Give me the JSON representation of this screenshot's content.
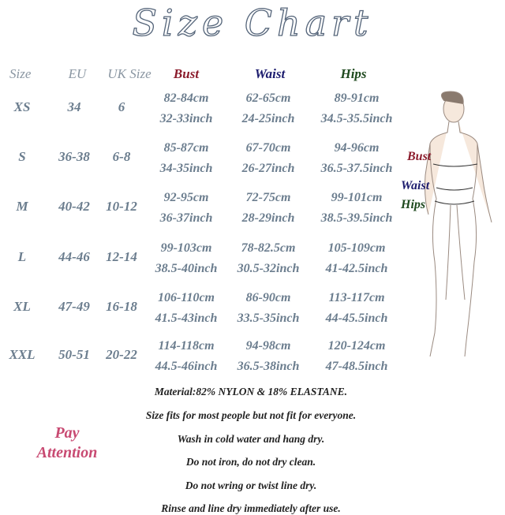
{
  "title": "Size Chart",
  "headers": {
    "size": "Size",
    "eu": "EU",
    "uk": "UK Size",
    "bust": "Bust",
    "waist": "Waist",
    "hips": "Hips"
  },
  "colors": {
    "text": "#6b7d8e",
    "bust": "#8b1c2c",
    "waist": "#1c1c6e",
    "hips": "#1f4a1f",
    "attention": "#c84a72"
  },
  "rows": [
    {
      "size": "XS",
      "eu": "34",
      "uk": "6",
      "bust_cm": "82-84cm",
      "bust_in": "32-33inch",
      "waist_cm": "62-65cm",
      "waist_in": "24-25inch",
      "hips_cm": "89-91cm",
      "hips_in": "34.5-35.5inch"
    },
    {
      "size": "S",
      "eu": "36-38",
      "uk": "6-8",
      "bust_cm": "85-87cm",
      "bust_in": "34-35inch",
      "waist_cm": "67-70cm",
      "waist_in": "26-27inch",
      "hips_cm": "94-96cm",
      "hips_in": "36.5-37.5inch"
    },
    {
      "size": "M",
      "eu": "40-42",
      "uk": "10-12",
      "bust_cm": "92-95cm",
      "bust_in": "36-37inch",
      "waist_cm": "72-75cm",
      "waist_in": "28-29inch",
      "hips_cm": "99-101cm",
      "hips_in": "38.5-39.5inch"
    },
    {
      "size": "L",
      "eu": "44-46",
      "uk": "12-14",
      "bust_cm": "99-103cm",
      "bust_in": "38.5-40inch",
      "waist_cm": "78-82.5cm",
      "waist_in": "30.5-32inch",
      "hips_cm": "105-109cm",
      "hips_in": "41-42.5inch"
    },
    {
      "size": "XL",
      "eu": "47-49",
      "uk": "16-18",
      "bust_cm": "106-110cm",
      "bust_in": "41.5-43inch",
      "waist_cm": "86-90cm",
      "waist_in": "33.5-35inch",
      "hips_cm": "113-117cm",
      "hips_in": "44-45.5inch"
    },
    {
      "size": "XXL",
      "eu": "50-51",
      "uk": "20-22",
      "bust_cm": "114-118cm",
      "bust_in": "44.5-46inch",
      "waist_cm": "94-98cm",
      "waist_in": "36.5-38inch",
      "hips_cm": "120-124cm",
      "hips_in": "47-48.5inch"
    }
  ],
  "figure_labels": {
    "bust": "Bust",
    "waist": "Waist",
    "hips": "Hips"
  },
  "attention": {
    "line1": "Pay",
    "line2": "Attention"
  },
  "notes": [
    "Material:82% NYLON & 18% ELASTANE.",
    "Size fits for most people but not fit for everyone.",
    "Wash in cold water and hang dry.",
    "Do not iron, do not dry clean.",
    "Do not wring or twist line dry.",
    "Rinse and line dry immediately after use."
  ]
}
